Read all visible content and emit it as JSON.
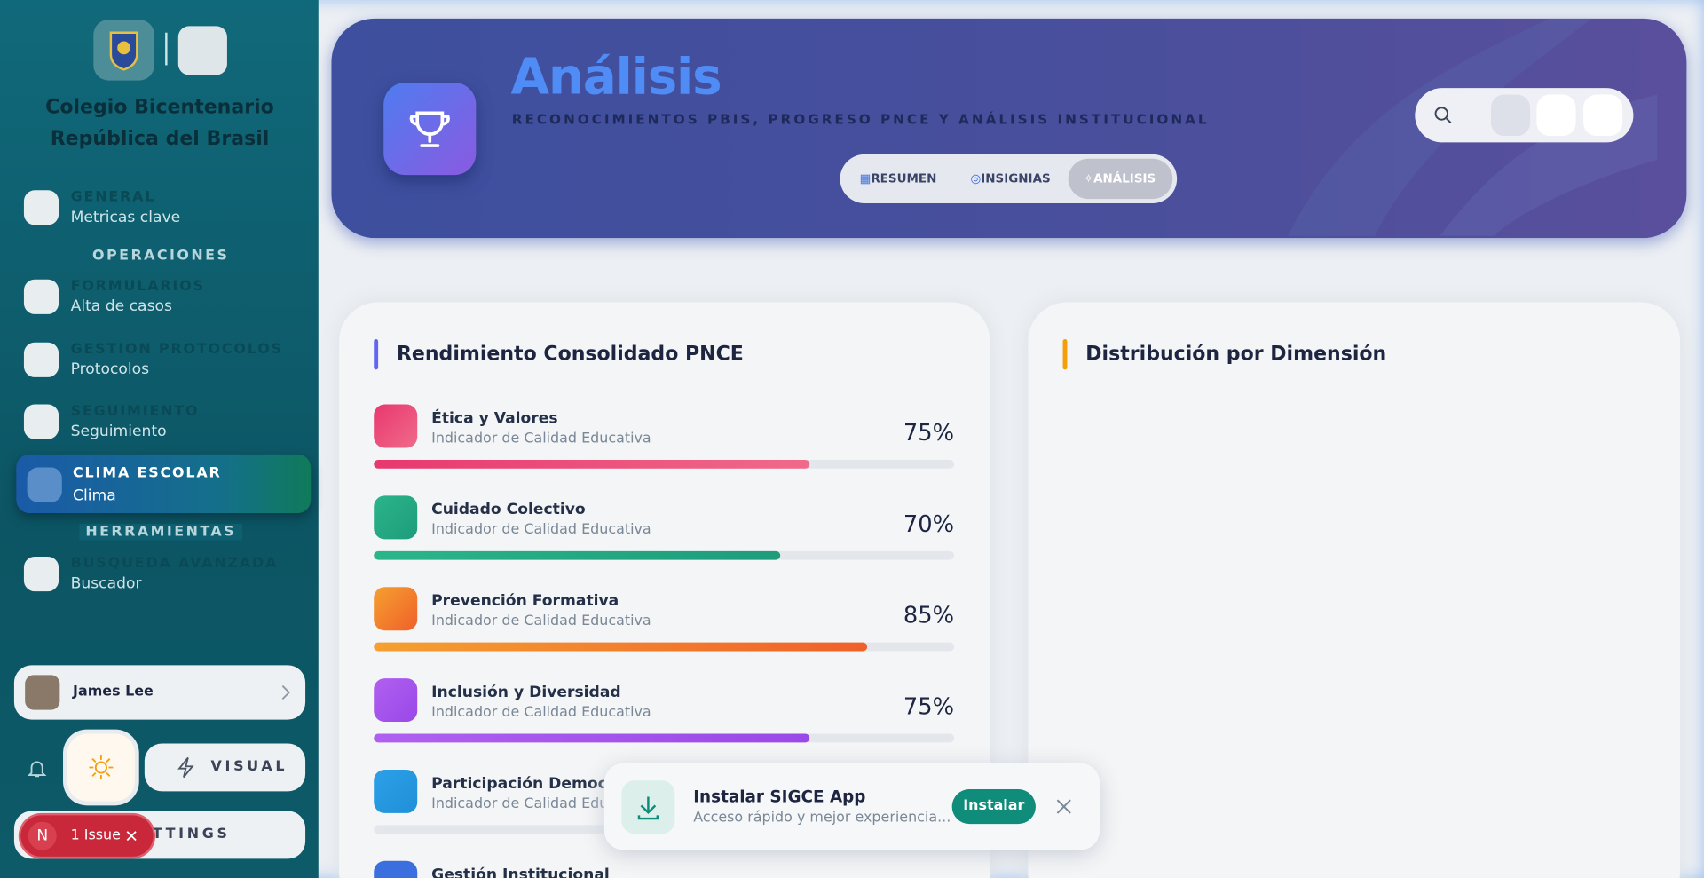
{
  "sidebar": {
    "school": "Colegio Bicentenario República del Brasil",
    "nav": [
      {
        "label": "GENERAL",
        "sub": "Metricas clave"
      },
      {
        "section": "OPERACIONES"
      },
      {
        "label": "FORMULARIOS",
        "sub": "Alta de casos"
      },
      {
        "label": "GESTION PROTOCOLOS",
        "sub": "Protocolos"
      },
      {
        "label": "SEGUIMIENTO",
        "sub": "Seguimiento"
      },
      {
        "label": "CLIMA ESCOLAR",
        "sub": "Clima"
      },
      {
        "section": "HERRAMIENTAS"
      },
      {
        "label": "BUSQUEDA AVANZADA",
        "sub": "Buscador"
      }
    ],
    "user": "James Lee",
    "visual": "VISUAL",
    "settings": "SETTINGS",
    "issue": {
      "avatar": "N",
      "text": "1 Issue"
    }
  },
  "header": {
    "title": "Análisis",
    "subtitle": "RECONOCIMIENTOS PBIS, PROGRESO PNCE Y ANÁLISIS INSTITUCIONAL",
    "tabs": [
      "RESUMEN",
      "INSIGNIAS",
      "ANÁLISIS"
    ]
  },
  "performance": {
    "title": "Rendimiento Consolidado PNCE",
    "items": [
      {
        "name": "Ética y Valores",
        "sub": "Indicador de Calidad Educativa",
        "percent": {
          "value": 75,
          "label": "75%"
        }
      },
      {
        "name": "Cuidado Colectivo",
        "sub": "Indicador de Calidad Educativa",
        "percent": {
          "value": 70,
          "label": "70%"
        }
      },
      {
        "name": "Prevención Formativa",
        "sub": "Indicador de Calidad Educativa",
        "percent": {
          "value": 85,
          "label": "85%"
        }
      },
      {
        "name": "Inclusión y Diversidad",
        "sub": "Indicador de Calidad Educativa",
        "percent": {
          "value": 75,
          "label": "75%"
        }
      },
      {
        "name": "Participación Democrá",
        "sub": "Indicador de Calidad Educa"
      },
      {
        "name": "Gestión Institucional"
      }
    ]
  },
  "distribution": {
    "title": "Distribución por Dimensión"
  },
  "toast": {
    "title": "Instalar SIGCE App",
    "text": "Acceso rápido y mejor experiencia...",
    "button": "Instalar"
  }
}
